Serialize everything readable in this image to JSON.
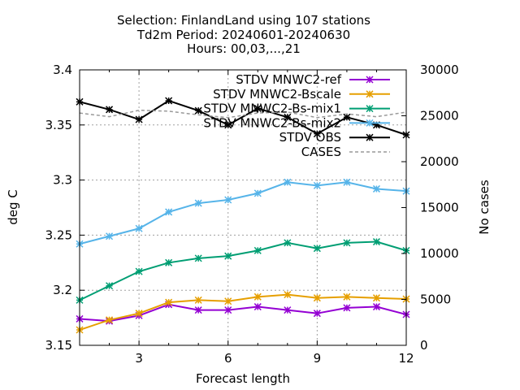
{
  "chart_data": {
    "type": "line",
    "title_lines": [
      "Selection: FinlandLand using   107 stations",
      "Td2m   Period: 20240601-20240630",
      "Hours: 00,03,...,21"
    ],
    "xlabel": "Forecast length",
    "ylabel": "deg C",
    "y2label": "No cases",
    "xlim": [
      1,
      12
    ],
    "ylim": [
      3.15,
      3.4
    ],
    "y2lim": [
      0,
      30000
    ],
    "xticks": [
      3,
      6,
      9,
      12
    ],
    "yticks": [
      3.15,
      3.2,
      3.25,
      3.3,
      3.35,
      3.4
    ],
    "yticklabels": [
      "3.15",
      "3.2",
      "3.25",
      "3.3",
      "3.35",
      "3.4"
    ],
    "y2ticks": [
      0,
      5000,
      10000,
      15000,
      20000,
      25000,
      30000
    ],
    "grid": true,
    "legend_position": "top-right",
    "x": [
      1,
      2,
      3,
      4,
      5,
      6,
      7,
      8,
      9,
      10,
      11,
      12
    ],
    "series": [
      {
        "name": "STDV MNWC2-ref",
        "color": "#9400d3",
        "axis": "y",
        "marker": "star",
        "values": [
          3.174,
          3.172,
          3.177,
          3.187,
          3.182,
          3.182,
          3.185,
          3.182,
          3.179,
          3.184,
          3.185,
          3.178
        ]
      },
      {
        "name": "STDV MNWC2-Bscale",
        "color": "#e69f00",
        "axis": "y",
        "marker": "star",
        "values": [
          3.164,
          3.173,
          3.179,
          3.189,
          3.191,
          3.19,
          3.194,
          3.196,
          3.193,
          3.194,
          3.193,
          3.192
        ]
      },
      {
        "name": "STDV MNWC2-Bs-mix1",
        "color": "#009e73",
        "axis": "y",
        "marker": "star",
        "values": [
          3.191,
          3.204,
          3.217,
          3.225,
          3.229,
          3.231,
          3.236,
          3.243,
          3.238,
          3.243,
          3.244,
          3.236
        ]
      },
      {
        "name": "STDV MNWC2-Bs-mix2",
        "color": "#56b4e9",
        "axis": "y",
        "marker": "star",
        "values": [
          3.242,
          3.249,
          3.256,
          3.271,
          3.279,
          3.282,
          3.288,
          3.298,
          3.295,
          3.298,
          3.292,
          3.29
        ]
      },
      {
        "name": "STDV OBS",
        "color": "#000000",
        "axis": "y",
        "marker": "star",
        "values": [
          3.371,
          3.364,
          3.355,
          3.372,
          3.363,
          3.35,
          3.365,
          3.357,
          3.342,
          3.357,
          3.35,
          3.341
        ]
      },
      {
        "name": "CASES",
        "color": "#999999",
        "axis": "y2",
        "marker": "none",
        "dash": "dashed",
        "values": [
          25300,
          24900,
          25600,
          25500,
          25100,
          24800,
          25300,
          25400,
          24800,
          25200,
          24900,
          25400
        ]
      }
    ]
  }
}
